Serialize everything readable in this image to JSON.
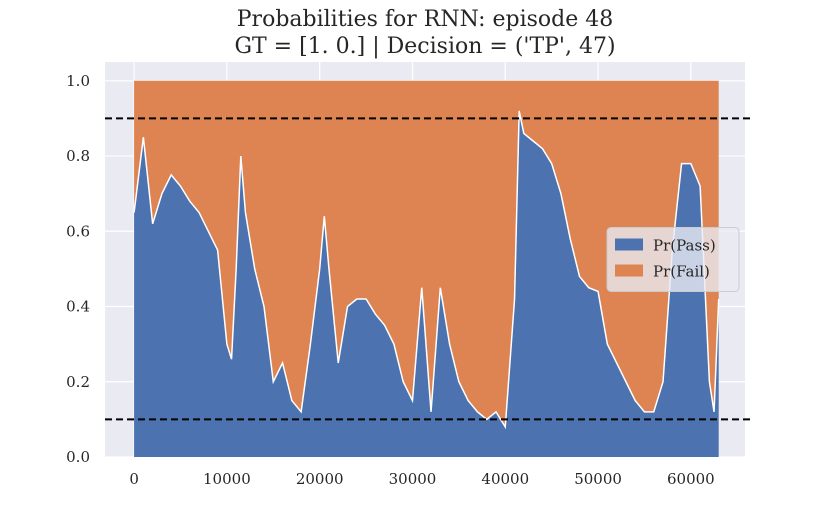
{
  "chart_data": {
    "type": "stacked_area",
    "title": "Probabilities for RNN: episode 48",
    "subtitle": "GT = [1. 0.] | Decision = ('TP', 47)",
    "x": [
      0,
      1000,
      2000,
      3000,
      4000,
      5000,
      6000,
      7000,
      8000,
      9000,
      10000,
      10500,
      11000,
      11500,
      12000,
      13000,
      14000,
      15000,
      16000,
      17000,
      18000,
      19000,
      20000,
      20500,
      21000,
      22000,
      23000,
      24000,
      25000,
      26000,
      27000,
      28000,
      29000,
      30000,
      31000,
      32000,
      33000,
      34000,
      35000,
      36000,
      37000,
      38000,
      39000,
      40000,
      41000,
      41500,
      42000,
      43000,
      44000,
      45000,
      46000,
      47000,
      48000,
      49000,
      50000,
      51000,
      52000,
      53000,
      54000,
      55000,
      56000,
      57000,
      58000,
      59000,
      60000,
      61000,
      62000,
      62500,
      63000
    ],
    "series": [
      {
        "name": "Pr(Pass)",
        "color": "#4c72b0",
        "values": [
          0.65,
          0.85,
          0.62,
          0.7,
          0.75,
          0.72,
          0.68,
          0.65,
          0.6,
          0.55,
          0.3,
          0.26,
          0.5,
          0.8,
          0.65,
          0.5,
          0.4,
          0.2,
          0.25,
          0.15,
          0.12,
          0.3,
          0.5,
          0.64,
          0.5,
          0.25,
          0.4,
          0.42,
          0.42,
          0.38,
          0.35,
          0.3,
          0.2,
          0.15,
          0.45,
          0.12,
          0.45,
          0.3,
          0.2,
          0.15,
          0.12,
          0.1,
          0.12,
          0.08,
          0.42,
          0.92,
          0.86,
          0.84,
          0.82,
          0.78,
          0.7,
          0.58,
          0.48,
          0.45,
          0.44,
          0.3,
          0.25,
          0.2,
          0.15,
          0.12,
          0.12,
          0.2,
          0.55,
          0.78,
          0.78,
          0.72,
          0.2,
          0.12,
          0.42
        ]
      },
      {
        "name": "Pr(Fail)",
        "color": "#dd8452",
        "values": [
          0.35,
          0.15,
          0.38,
          0.3,
          0.25,
          0.28,
          0.32,
          0.35,
          0.4,
          0.45,
          0.7,
          0.74,
          0.5,
          0.2,
          0.35,
          0.5,
          0.6,
          0.8,
          0.75,
          0.85,
          0.88,
          0.7,
          0.5,
          0.36,
          0.5,
          0.75,
          0.6,
          0.58,
          0.58,
          0.62,
          0.65,
          0.7,
          0.8,
          0.85,
          0.55,
          0.88,
          0.55,
          0.7,
          0.8,
          0.85,
          0.88,
          0.9,
          0.88,
          0.92,
          0.58,
          0.08,
          0.14,
          0.16,
          0.18,
          0.22,
          0.3,
          0.42,
          0.52,
          0.55,
          0.56,
          0.7,
          0.75,
          0.8,
          0.85,
          0.88,
          0.88,
          0.8,
          0.45,
          0.22,
          0.22,
          0.28,
          0.8,
          0.88,
          0.58
        ]
      }
    ],
    "hlines": [
      0.9,
      0.1
    ],
    "xlim": [
      -3135,
      65835
    ],
    "ylim": [
      0,
      1.05
    ],
    "xticks": [
      0,
      10000,
      20000,
      30000,
      40000,
      50000,
      60000
    ],
    "yticks": [
      {
        "value": 0,
        "label": "0.0"
      },
      0.2,
      0.4,
      0.6,
      0.8,
      {
        "value": 1,
        "label": "1.0"
      }
    ],
    "grid": true,
    "legend": "center right"
  }
}
